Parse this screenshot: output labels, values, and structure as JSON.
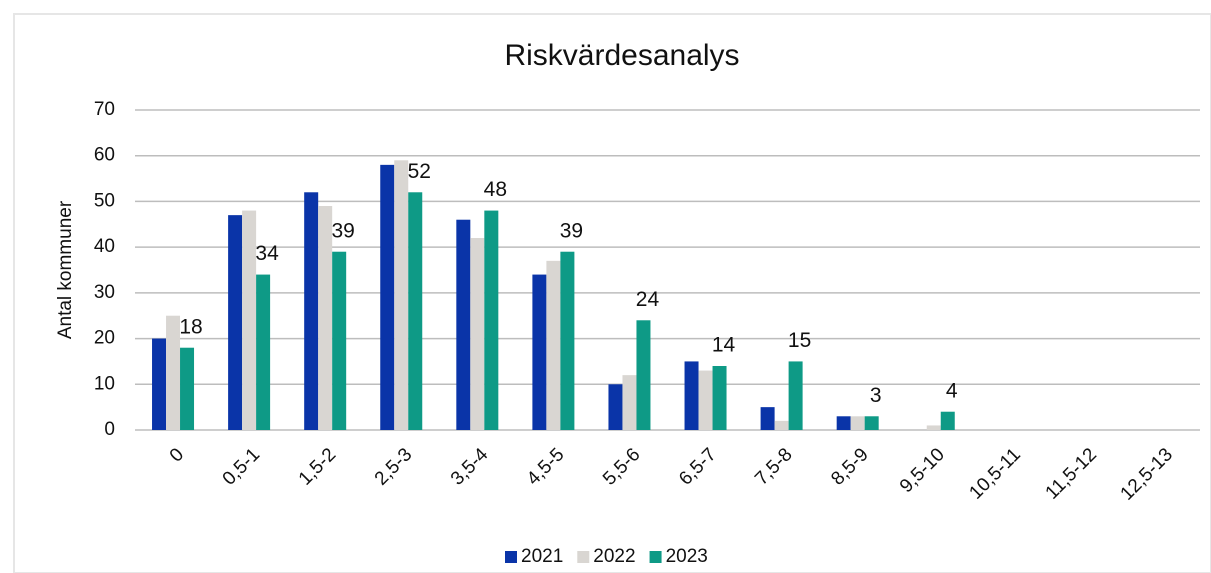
{
  "chart_data": {
    "type": "bar",
    "title": "Riskvärdesanalys",
    "y_label": "Antal kommuner",
    "categories": [
      "0",
      "0,5-1",
      "1,5-2",
      "2,5-3",
      "3,5-4",
      "4,5-5",
      "5,5-6",
      "6,5-7",
      "7,5-8",
      "8,5-9",
      "9,5-10",
      "10,5-11",
      "11,5-12",
      "12,5-13"
    ],
    "series": [
      {
        "name": "2021",
        "color": "#0a34a8",
        "values": [
          20,
          47,
          52,
          58,
          46,
          34,
          10,
          15,
          5,
          3,
          0,
          0,
          0,
          0
        ]
      },
      {
        "name": "2022",
        "color": "#d9d6d2",
        "values": [
          25,
          48,
          49,
          59,
          42,
          37,
          12,
          13,
          2,
          3,
          1,
          0,
          0,
          0
        ]
      },
      {
        "name": "2023",
        "color": "#0e9a86",
        "values": [
          18,
          34,
          39,
          52,
          48,
          39,
          24,
          14,
          15,
          3,
          4,
          0,
          0,
          0
        ],
        "value_labels": [
          "18",
          "34",
          "39",
          "52",
          "48",
          "39",
          "24",
          "14",
          "15",
          "3",
          "4",
          null,
          null,
          null
        ]
      }
    ],
    "ylim": [
      0,
      70
    ],
    "yticks": [
      0,
      10,
      20,
      30,
      40,
      50,
      60,
      70
    ],
    "grid": true,
    "legend": "bottom"
  }
}
